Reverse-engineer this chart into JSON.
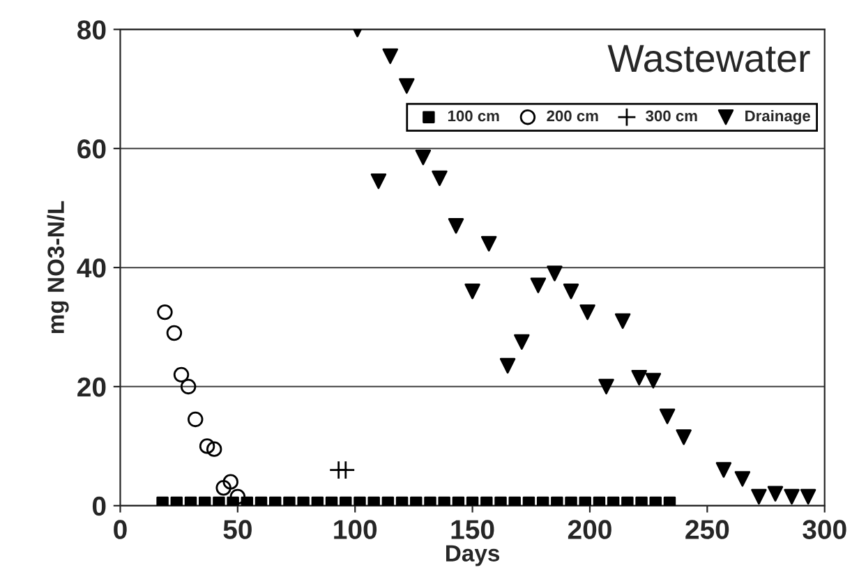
{
  "chart_data": {
    "type": "scatter",
    "title": "Wastewater",
    "xlabel": "Days",
    "ylabel": "mg NO3-N/L",
    "xlim": [
      0,
      300
    ],
    "xticks": [
      0,
      50,
      100,
      150,
      200,
      250,
      300
    ],
    "ylim": [
      0,
      80
    ],
    "yticks": [
      0,
      20,
      40,
      60,
      80
    ],
    "grid": "y",
    "legend": "top right",
    "series": [
      {
        "name": "100 cm",
        "color": "#000000",
        "marker": "square",
        "x": [
          18,
          24,
          30,
          36,
          42,
          48,
          54,
          60,
          66,
          72,
          78,
          84,
          90,
          96,
          102,
          108,
          114,
          120,
          126,
          132,
          138,
          144,
          150,
          156,
          162,
          168,
          174,
          180,
          186,
          192,
          198,
          204,
          210,
          216,
          222,
          228,
          234
        ],
        "values": [
          0.5,
          0.5,
          0.5,
          0.5,
          0.5,
          0.5,
          0.5,
          0.5,
          0.5,
          0.5,
          0.5,
          0.5,
          0.5,
          0.5,
          0.5,
          0.5,
          0.5,
          0.5,
          0.5,
          0.5,
          0.5,
          0.5,
          0.5,
          0.5,
          0.5,
          0.5,
          0.5,
          0.5,
          0.5,
          0.5,
          0.5,
          0.5,
          0.5,
          0.5,
          0.5,
          0.5,
          0.5
        ]
      },
      {
        "name": "200 cm",
        "color": "#000000",
        "marker": "circle",
        "x": [
          19,
          23,
          26,
          29,
          32,
          37,
          40,
          44,
          47,
          50
        ],
        "values": [
          32.5,
          29,
          22,
          20,
          14.5,
          10,
          9.5,
          3,
          4,
          1.5
        ]
      },
      {
        "name": "300 cm",
        "color": "#000000",
        "marker": "cross",
        "x": [
          93,
          96
        ],
        "values": [
          6,
          6
        ]
      },
      {
        "name": "Drainage",
        "color": "#000000",
        "marker": "triangle",
        "x": [
          101,
          110,
          115,
          122,
          129,
          136,
          143,
          150,
          157,
          165,
          171,
          178,
          185,
          192,
          199,
          207,
          214,
          221,
          227,
          233,
          240,
          257,
          265,
          272,
          279,
          286,
          293
        ],
        "values": [
          80,
          54.5,
          75.5,
          70.5,
          58.5,
          55,
          47,
          36,
          44,
          23.5,
          27.5,
          37,
          39,
          36,
          32.5,
          20,
          31,
          21.5,
          21,
          15,
          11.5,
          6,
          4.5,
          1.5,
          2,
          1.5,
          1.5
        ]
      }
    ]
  }
}
